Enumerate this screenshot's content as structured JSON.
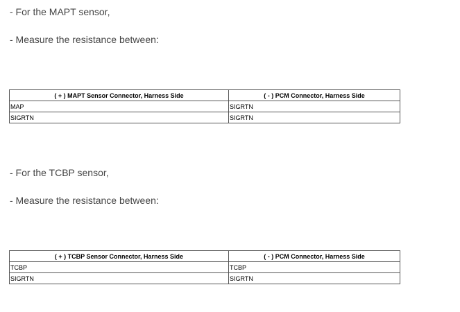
{
  "sections": [
    {
      "intro": "-  For the MAPT sensor,",
      "instruction": "-  Measure the resistance between:",
      "table": {
        "headers": [
          "( + ) MAPT Sensor Connector, Harness Side",
          "( - ) PCM Connector, Harness Side"
        ],
        "rows": [
          [
            "MAP",
            "SIGRTN"
          ],
          [
            "SIGRTN",
            "SIGRTN"
          ]
        ]
      }
    },
    {
      "intro": "-  For the TCBP sensor,",
      "instruction": "-  Measure the resistance between:",
      "table": {
        "headers": [
          "( + ) TCBP Sensor Connector, Harness Side",
          "( - ) PCM Connector, Harness Side"
        ],
        "rows": [
          [
            "TCBP",
            "TCBP"
          ],
          [
            "SIGRTN",
            "SIGRTN"
          ]
        ]
      }
    }
  ]
}
